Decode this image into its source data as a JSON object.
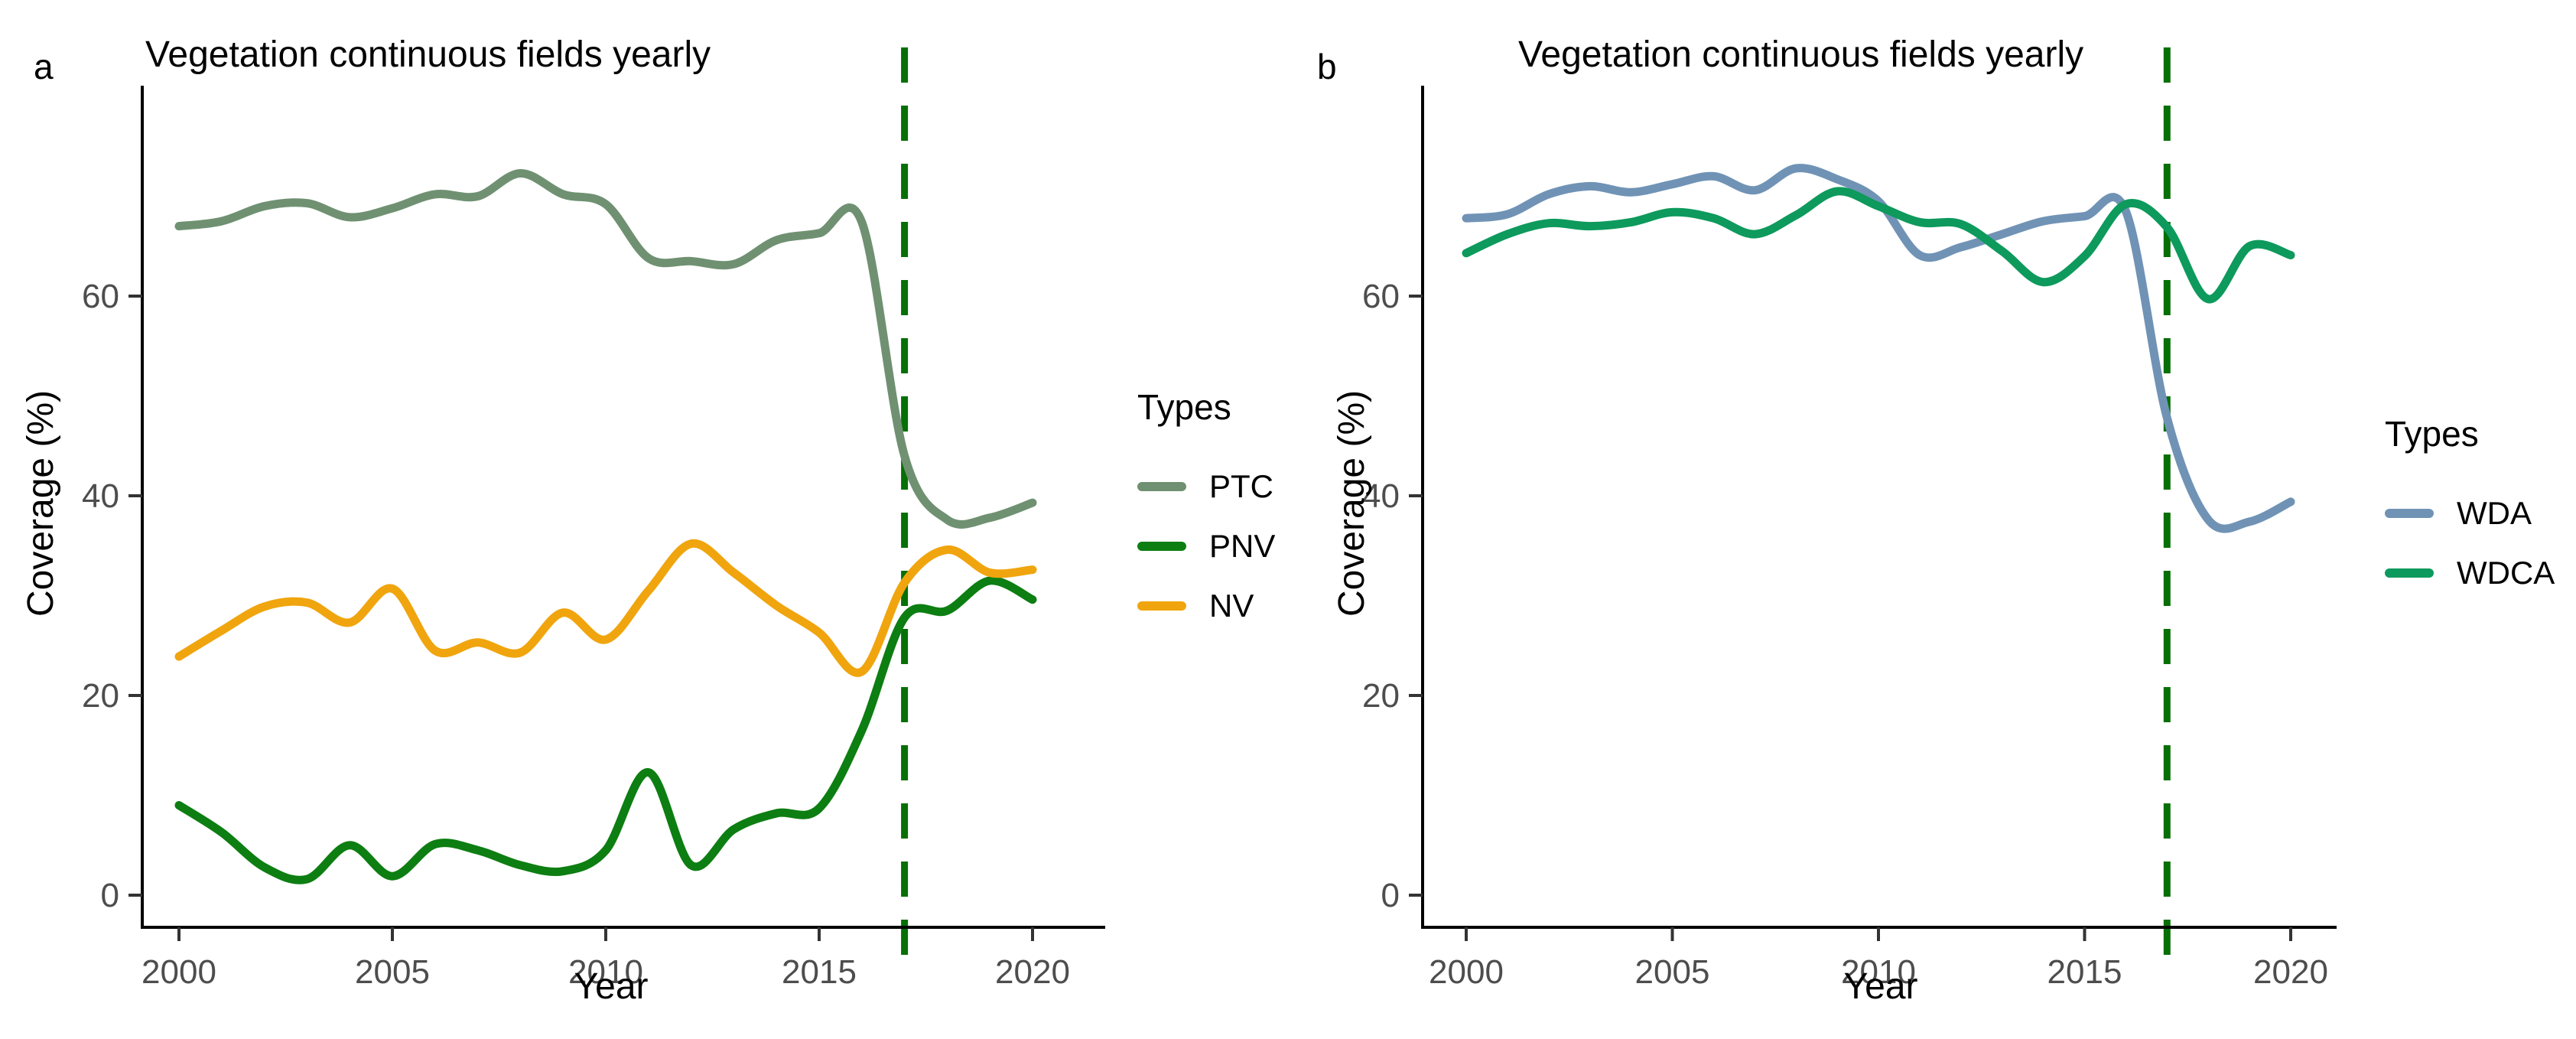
{
  "chart_data": [
    {
      "type": "line",
      "panel_label": "a",
      "title": "Vegetation continuous fields yearly",
      "xlabel": "Year",
      "ylabel": "Coverage (%)",
      "legend_title": "Types",
      "legend_position": "right",
      "grid": false,
      "x_ticks": [
        2000,
        2005,
        2010,
        2015,
        2020
      ],
      "y_ticks": [
        0,
        20,
        40,
        60
      ],
      "xlim": [
        1999,
        2021
      ],
      "ylim": [
        0,
        81
      ],
      "x": [
        2000,
        2001,
        2002,
        2003,
        2004,
        2005,
        2006,
        2007,
        2008,
        2009,
        2010,
        2011,
        2012,
        2013,
        2014,
        2015,
        2016,
        2017,
        2018,
        2019,
        2020
      ],
      "vline": {
        "x": 2017,
        "style": "dashed",
        "color": "#066F06"
      },
      "series": [
        {
          "name": "PTC",
          "color": "#6F9172",
          "values": [
            67.0,
            67.5,
            69.0,
            69.3,
            67.9,
            68.8,
            70.2,
            70.0,
            72.3,
            70.2,
            69.2,
            63.8,
            63.5,
            63.2,
            65.6,
            66.3,
            67.4,
            44.0,
            37.6,
            37.8,
            39.3
          ]
        },
        {
          "name": "PNV",
          "color": "#0D7E12",
          "values": [
            9.0,
            6.3,
            2.8,
            1.6,
            5.0,
            1.9,
            5.1,
            4.5,
            3.0,
            2.4,
            4.5,
            12.3,
            3.0,
            6.6,
            8.2,
            8.7,
            16.5,
            27.8,
            28.5,
            31.5,
            29.6
          ]
        },
        {
          "name": "NV",
          "color": "#F0A50E",
          "values": [
            23.9,
            26.5,
            28.9,
            29.3,
            27.3,
            30.7,
            24.5,
            25.3,
            24.3,
            28.3,
            25.6,
            30.5,
            35.2,
            32.3,
            29.0,
            26.3,
            22.4,
            31.3,
            34.6,
            32.3,
            32.6
          ]
        }
      ]
    },
    {
      "type": "line",
      "panel_label": "b",
      "title": "Vegetation continuous fields yearly",
      "xlabel": "Year",
      "ylabel": "Coverage (%)",
      "legend_title": "Types",
      "legend_position": "right",
      "grid": false,
      "x_ticks": [
        2000,
        2005,
        2010,
        2015,
        2020
      ],
      "y_ticks": [
        0,
        20,
        40,
        60
      ],
      "xlim": [
        1999,
        2021
      ],
      "ylim": [
        0,
        81
      ],
      "x": [
        2000,
        2001,
        2002,
        2003,
        2004,
        2005,
        2006,
        2007,
        2008,
        2009,
        2010,
        2011,
        2012,
        2013,
        2014,
        2015,
        2016,
        2017,
        2018,
        2019,
        2020
      ],
      "vline": {
        "x": 2017,
        "style": "dashed",
        "color": "#066F06"
      },
      "series": [
        {
          "name": "WDA",
          "color": "#7093B5",
          "values": [
            67.8,
            68.2,
            70.2,
            71.0,
            70.4,
            71.2,
            72.0,
            70.6,
            72.8,
            71.7,
            69.5,
            64.1,
            64.9,
            66.2,
            67.5,
            68.0,
            68.5,
            47.8,
            37.6,
            37.4,
            39.4
          ]
        },
        {
          "name": "WDCA",
          "color": "#0D9A5C",
          "values": [
            64.3,
            66.2,
            67.3,
            67.0,
            67.4,
            68.4,
            67.8,
            66.2,
            68.1,
            70.5,
            69.0,
            67.4,
            67.2,
            64.5,
            61.4,
            64.0,
            69.2,
            66.9,
            59.7,
            65.0,
            64.1
          ]
        }
      ]
    }
  ],
  "style": {
    "background": "#ffffff",
    "axis_color": "#000000",
    "tick_label_color": "#4d4d4d"
  }
}
